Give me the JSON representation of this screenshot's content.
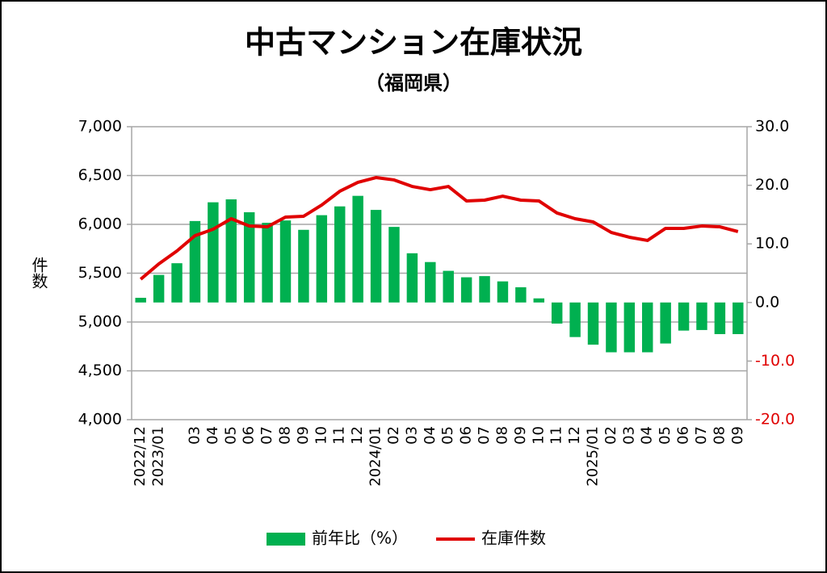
{
  "chart_data": {
    "type": "combo",
    "title": "中古マンション在庫状況",
    "subtitle": "（福岡県）",
    "ylabel": "件数",
    "categories": [
      "2022/12",
      "2023/01",
      null,
      "03",
      "04",
      "05",
      "06",
      "07",
      "08",
      "09",
      "10",
      "11",
      "12",
      "2024/01",
      "02",
      "03",
      "04",
      "05",
      "06",
      "07",
      "08",
      "09",
      "10",
      "11",
      "12",
      "2025/01",
      "02",
      "03",
      "04",
      "05",
      "06",
      "07",
      "08",
      "09"
    ],
    "series": [
      {
        "name": "前年比（%）",
        "type": "bar",
        "axis": "y2",
        "color": "#00b050",
        "values": [
          0.8,
          4.7,
          6.7,
          13.9,
          17.1,
          17.6,
          15.4,
          13.6,
          14.0,
          12.4,
          14.9,
          16.4,
          18.2,
          15.8,
          12.9,
          8.4,
          6.9,
          5.4,
          4.3,
          4.5,
          3.6,
          2.6,
          0.7,
          -3.6,
          -5.9,
          -7.2,
          -8.5,
          -8.5,
          -8.5,
          -7.0,
          -4.8,
          -4.7,
          -5.4,
          -5.4
        ]
      },
      {
        "name": "在庫件数",
        "type": "line",
        "color": "#e00000",
        "values": [
          5438,
          5595,
          5727,
          5884,
          5950,
          6058,
          5983,
          5975,
          6074,
          6083,
          6198,
          6339,
          6430,
          6479,
          6455,
          6388,
          6355,
          6388,
          6240,
          6248,
          6289,
          6248,
          6240,
          6116,
          6058,
          6025,
          5917,
          5868,
          5835,
          5959,
          5959,
          5983,
          5975,
          5926
        ]
      }
    ],
    "ylim": [
      4000,
      7000
    ],
    "yticks": [
      {
        "value": 4000,
        "label": "4,000"
      },
      {
        "value": 4500,
        "label": "4,500"
      },
      {
        "value": 5000,
        "label": "5,000"
      },
      {
        "value": 5500,
        "label": "5,500"
      },
      {
        "value": 6000,
        "label": "6,000"
      },
      {
        "value": 6500,
        "label": "6,500"
      },
      {
        "value": 7000,
        "label": "7,000"
      }
    ],
    "y2lim": [
      -20,
      30
    ],
    "y2ticks": [
      {
        "value": -20,
        "label": "-20.0"
      },
      {
        "value": -10,
        "label": "-10.0"
      },
      {
        "value": 0,
        "label": "0.0"
      },
      {
        "value": 10,
        "label": "10.0"
      },
      {
        "value": 20,
        "label": "20.0"
      },
      {
        "value": 30,
        "label": "30.0"
      }
    ],
    "negative_tick_color": "#e00000",
    "grid": true,
    "legend": "bottom"
  }
}
